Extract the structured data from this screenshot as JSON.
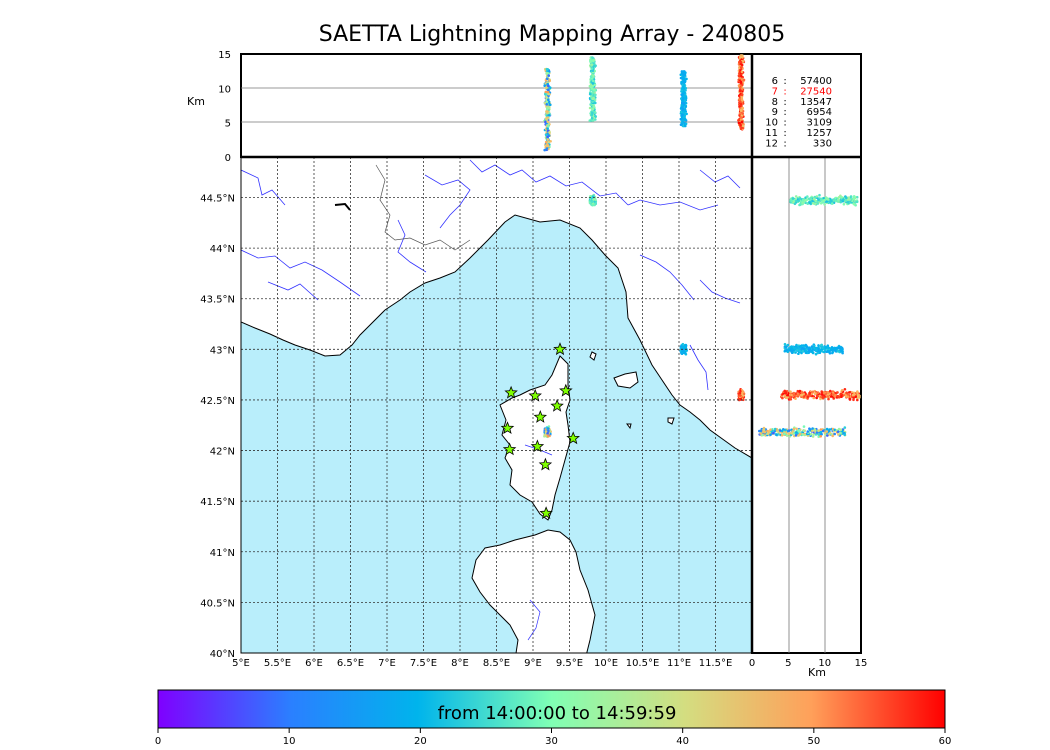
{
  "title": "SAETTA Lightning Mapping Array - 240805",
  "altitude_panel": {
    "unit_label": "Km",
    "ticks": [
      "0",
      "5",
      "10",
      "15"
    ]
  },
  "side_panel": {
    "unit_label": "Km",
    "ticks": [
      "0",
      "5",
      "10",
      "15"
    ]
  },
  "map": {
    "lon_ticks": [
      "5°E",
      "5.5°E",
      "6°E",
      "6.5°E",
      "7°E",
      "7.5°E",
      "8°E",
      "8.5°E",
      "9°E",
      "9.5°E",
      "10°E",
      "10.5°E",
      "11°E",
      "11.5°E"
    ],
    "lat_ticks": [
      "40°N",
      "40.5°N",
      "41°N",
      "41.5°N",
      "42°N",
      "42.5°N",
      "43°N",
      "43.5°N",
      "44°N",
      "44.5°N"
    ],
    "lon_range": [
      5,
      12
    ],
    "lat_range": [
      40,
      44.9
    ],
    "sea_color": "#b9eefb",
    "land_color": "#ffffff",
    "river_color": "#3333ff",
    "station_color": "#7fff00",
    "stations": [
      {
        "lon": 9.37,
        "lat": 43.0
      },
      {
        "lon": 8.7,
        "lat": 42.57
      },
      {
        "lon": 9.03,
        "lat": 42.54
      },
      {
        "lon": 9.45,
        "lat": 42.59
      },
      {
        "lon": 9.33,
        "lat": 42.44
      },
      {
        "lon": 9.1,
        "lat": 42.33
      },
      {
        "lon": 8.65,
        "lat": 42.22
      },
      {
        "lon": 9.55,
        "lat": 42.12
      },
      {
        "lon": 8.68,
        "lat": 42.01
      },
      {
        "lon": 9.06,
        "lat": 42.04
      },
      {
        "lon": 9.17,
        "lat": 41.86
      },
      {
        "lon": 9.18,
        "lat": 41.38
      }
    ]
  },
  "counts": [
    {
      "level": "6",
      "value": "57400",
      "color": "#000000"
    },
    {
      "level": "7",
      "value": "27540",
      "color": "#ff0000"
    },
    {
      "level": "8",
      "value": "13547",
      "color": "#000000"
    },
    {
      "level": "9",
      "value": "6954",
      "color": "#000000"
    },
    {
      "level": "10",
      "value": "3109",
      "color": "#000000"
    },
    {
      "level": "11",
      "value": "1257",
      "color": "#000000"
    },
    {
      "level": "12",
      "value": "330",
      "color": "#000000"
    }
  ],
  "lightning_clusters": [
    {
      "lon": 9.82,
      "lat": 44.47,
      "alt_min": 5.3,
      "alt_max": 14.5,
      "t_min": 18,
      "t_max": 30
    },
    {
      "lon": 11.06,
      "lat": 43.0,
      "alt_min": 4.5,
      "alt_max": 12.5,
      "t_min": 14,
      "t_max": 20
    },
    {
      "lon": 11.85,
      "lat": 42.55,
      "alt_min": 4.0,
      "alt_max": 14.8,
      "t_min": 40,
      "t_max": 60
    },
    {
      "lon": 9.2,
      "lat": 42.18,
      "alt_min": 1.0,
      "alt_max": 13.0,
      "t_min": 5,
      "t_max": 45
    }
  ],
  "colorbar": {
    "label": "from 14:00:00 to 14:59:59",
    "ticks": [
      "0",
      "10",
      "20",
      "30",
      "40",
      "50",
      "60"
    ],
    "stops": [
      "#7f00ff",
      "#2a80ff",
      "#00b4ec",
      "#80ffb4",
      "#d4dd80",
      "#ffb360",
      "#ff4422",
      "#ff0000"
    ]
  }
}
